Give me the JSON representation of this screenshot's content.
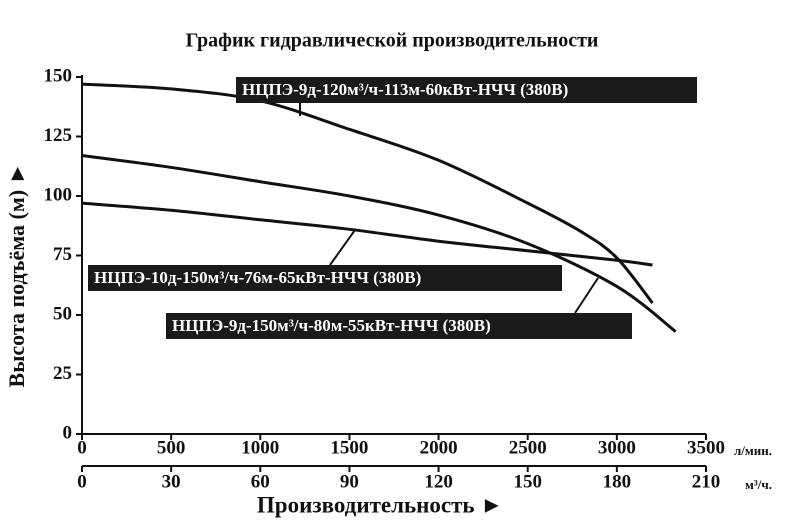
{
  "chart_data": {
    "type": "line",
    "title": "График гидравлической производительности",
    "xlabel": "Производительность ►",
    "ylabel": "Высота подъёма (м) ►",
    "xunit": "л/мин.",
    "x2unit": "м³/ч.",
    "xlim": [
      0,
      3500
    ],
    "xticks": [
      0,
      500,
      1000,
      1500,
      2000,
      2500,
      3000,
      3500
    ],
    "x2lim": [
      0,
      210
    ],
    "x2ticks": [
      0,
      30,
      60,
      90,
      120,
      150,
      180,
      210
    ],
    "ylim": [
      0,
      150
    ],
    "yticks": [
      0,
      25,
      50,
      75,
      100,
      125,
      150
    ],
    "grid": false,
    "series": [
      {
        "name": "НЦПЭ-9д-120м³/ч-113м-60кВт-НЧЧ (380В)",
        "color": "#111111",
        "x": [
          0,
          500,
          1000,
          1500,
          2000,
          2500,
          2800,
          3000,
          3200
        ],
        "values": [
          147,
          145,
          140,
          128,
          115,
          97,
          85,
          74,
          55
        ]
      },
      {
        "name": "НЦПЭ-9д-150м³/ч-80м-55кВт-НЧЧ (380В)",
        "color": "#111111",
        "x": [
          0,
          500,
          1000,
          1500,
          2000,
          2500,
          3000,
          3330
        ],
        "values": [
          117,
          112,
          106,
          100,
          92,
          80,
          62,
          43
        ]
      },
      {
        "name": "НЦПЭ-10д-150м³/ч-76м-65кВт-НЧЧ (380В)",
        "color": "#111111",
        "x": [
          0,
          500,
          1000,
          1500,
          2000,
          2500,
          3000,
          3200
        ],
        "values": [
          97,
          94,
          90,
          86,
          81,
          77,
          73,
          71
        ]
      }
    ]
  }
}
